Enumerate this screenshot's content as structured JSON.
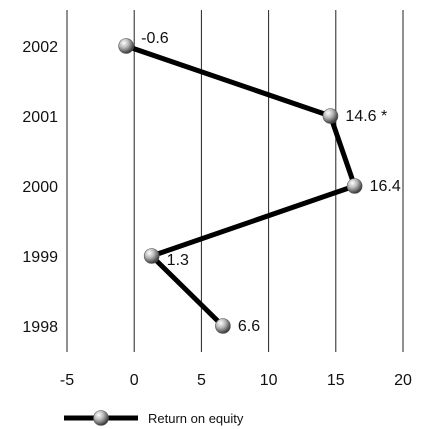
{
  "chart_data": {
    "type": "line",
    "orientation": "horizontal-values",
    "categories": [
      "2002",
      "2001",
      "2000",
      "1999",
      "1998"
    ],
    "series": [
      {
        "name": "Return on equity",
        "values": [
          -0.6,
          14.6,
          16.4,
          1.3,
          6.6
        ],
        "labels": [
          "-0.6",
          "14.6 *",
          "16.4",
          "1.3",
          "6.6"
        ],
        "color": "#000000"
      }
    ],
    "xlim": [
      -5,
      20
    ],
    "xticks": [
      "-5",
      "0",
      "5",
      "10",
      "15",
      "20"
    ],
    "grid": "vertical",
    "legend_position": "bottom-left",
    "title": "",
    "xlabel": "",
    "ylabel": ""
  }
}
